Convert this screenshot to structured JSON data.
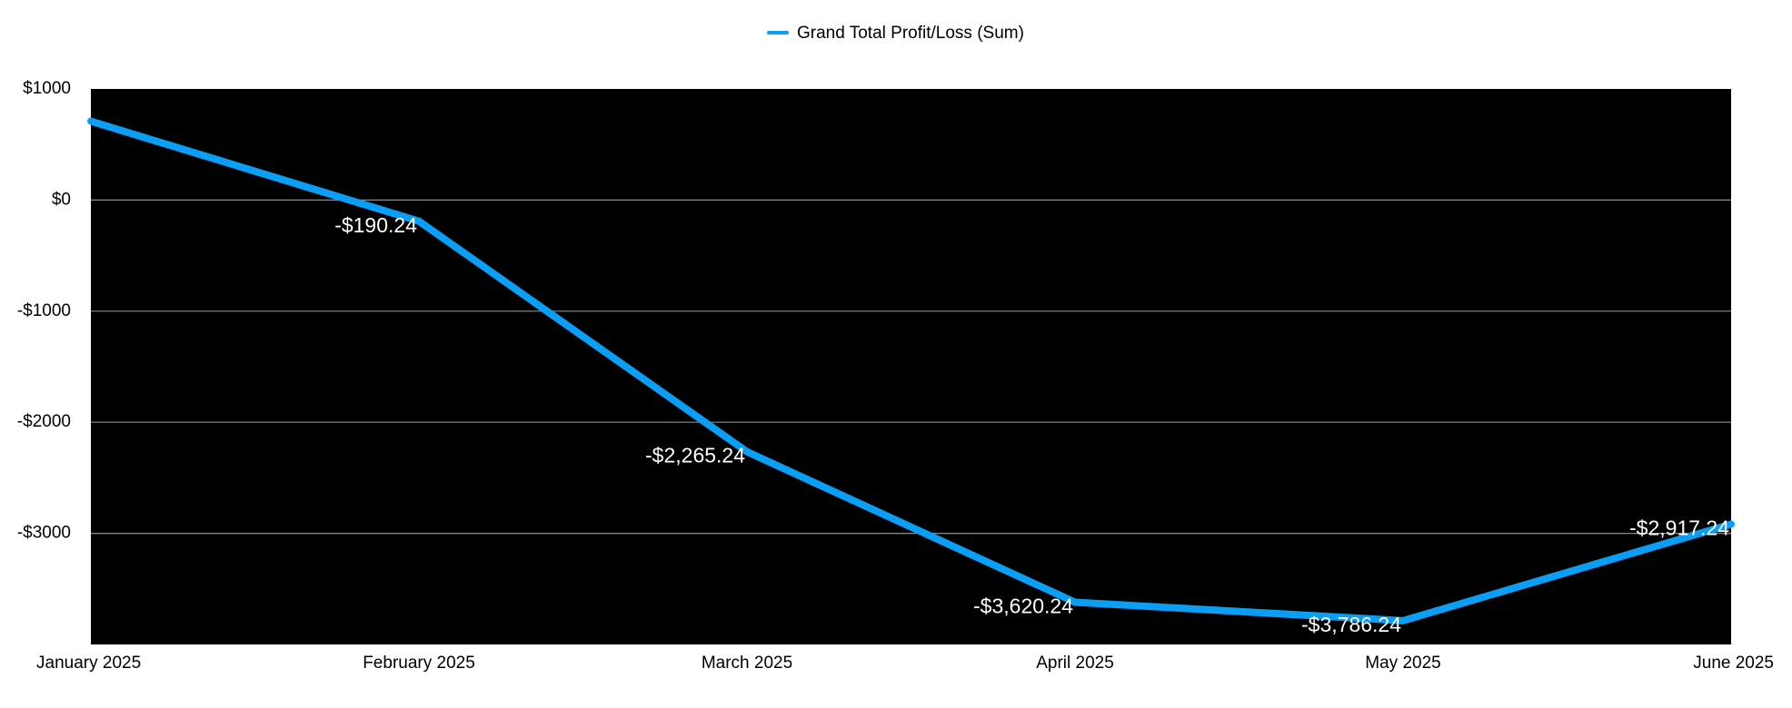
{
  "chart_data": {
    "type": "line",
    "title": "",
    "xlabel": "",
    "ylabel": "",
    "categories": [
      "January 2025",
      "February 2025",
      "March 2025",
      "April 2025",
      "May 2025",
      "June 2025"
    ],
    "series": [
      {
        "name": "Grand Total Profit/Loss (Sum)",
        "color": "#0A9FF5",
        "values": [
          709.76,
          -190.24,
          -2265.24,
          -3620.24,
          -3786.24,
          -2917.24
        ],
        "labels": [
          "",
          "-$190.24",
          "-$2,265.24",
          "-$3,620.24",
          "-$3,786.24",
          "-$2,917.24"
        ]
      }
    ],
    "ylim": [
      -4000,
      1000
    ],
    "yticks": [
      1000,
      0,
      -1000,
      -2000,
      -3000
    ],
    "ytick_labels": [
      "$1000",
      "$0",
      "-$1000",
      "-$2000",
      "-$3000"
    ],
    "grid": true,
    "legend_position": "top-center",
    "plot_background": "#000000",
    "gridline_color": "#8c8c8c"
  }
}
